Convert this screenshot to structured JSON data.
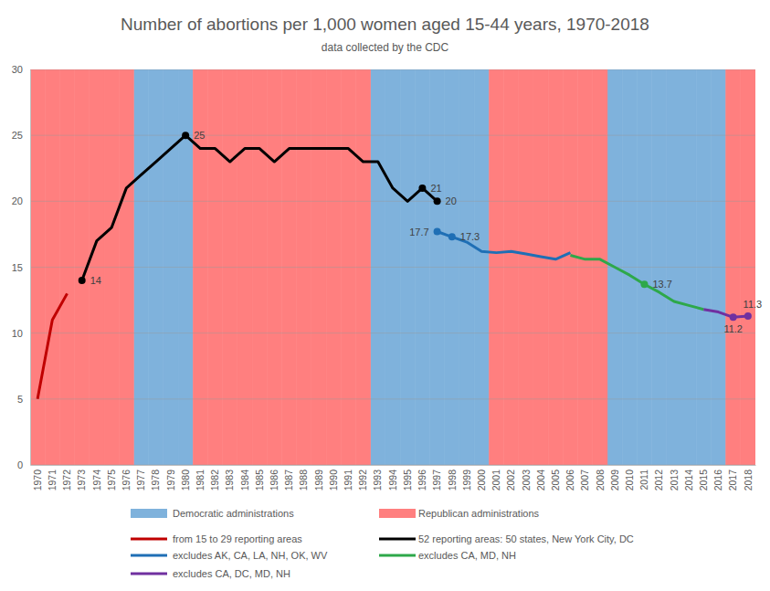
{
  "chart_data": {
    "type": "line",
    "title": "Number of abortions per 1,000 women aged 15-44 years, 1970-2018",
    "subtitle": "data collected by the CDC",
    "categories": [
      "1970",
      "1971",
      "1972",
      "1973",
      "1974",
      "1975",
      "1976",
      "1977",
      "1978",
      "1979",
      "1980",
      "1981",
      "1982",
      "1983",
      "1984",
      "1985",
      "1986",
      "1987",
      "1988",
      "1989",
      "1990",
      "1991",
      "1992",
      "1993",
      "1994",
      "1995",
      "1996",
      "1997",
      "1998",
      "1999",
      "2000",
      "2001",
      "2002",
      "2003",
      "2004",
      "2005",
      "2006",
      "2007",
      "2008",
      "2009",
      "2010",
      "2011",
      "2012",
      "2013",
      "2014",
      "2015",
      "2016",
      "2017",
      "2018"
    ],
    "series": [
      {
        "name": "Democratic administrations",
        "type": "bar",
        "color": "#7fb2dc",
        "values": [
          null,
          null,
          null,
          null,
          null,
          null,
          null,
          30,
          30,
          30,
          30,
          null,
          null,
          null,
          null,
          null,
          null,
          null,
          null,
          null,
          null,
          null,
          null,
          30,
          30,
          30,
          30,
          30,
          30,
          30,
          30,
          null,
          null,
          null,
          null,
          null,
          null,
          null,
          null,
          30,
          30,
          30,
          30,
          30,
          30,
          30,
          30,
          null,
          null
        ]
      },
      {
        "name": "Republican administrations",
        "type": "bar",
        "color": "#ff7f7f",
        "values": [
          30,
          30,
          30,
          30,
          30,
          30,
          30,
          null,
          null,
          null,
          null,
          30,
          30,
          30,
          30,
          30,
          30,
          30,
          30,
          30,
          30,
          30,
          30,
          null,
          null,
          null,
          null,
          null,
          null,
          null,
          null,
          30,
          30,
          30,
          30,
          30,
          30,
          30,
          30,
          null,
          null,
          null,
          null,
          null,
          null,
          null,
          null,
          30,
          30
        ]
      },
      {
        "name": "from 15 to 29 reporting areas",
        "type": "line",
        "color": "#c00000",
        "values": [
          5,
          11,
          13,
          null,
          null,
          null,
          null,
          null,
          null,
          null,
          null,
          null,
          null,
          null,
          null,
          null,
          null,
          null,
          null,
          null,
          null,
          null,
          null,
          null,
          null,
          null,
          null,
          null,
          null,
          null,
          null,
          null,
          null,
          null,
          null,
          null,
          null,
          null,
          null,
          null,
          null,
          null,
          null,
          null,
          null,
          null,
          null,
          null,
          null
        ]
      },
      {
        "name": "52 reporting areas: 50 states, New York City, DC",
        "type": "line",
        "color": "#000000",
        "data_labels": true,
        "values": [
          null,
          null,
          null,
          14,
          17,
          18,
          21,
          22,
          23,
          24,
          25,
          24,
          24,
          23,
          24,
          24,
          23,
          24,
          24,
          24,
          24,
          24,
          23,
          23,
          21,
          20,
          21,
          20,
          null,
          null,
          null,
          null,
          null,
          null,
          null,
          null,
          null,
          null,
          null,
          null,
          null,
          null,
          null,
          null,
          null,
          null,
          null,
          null,
          null
        ],
        "value_labels": [
          null,
          null,
          null,
          "14",
          null,
          null,
          null,
          null,
          null,
          null,
          "25",
          null,
          null,
          null,
          null,
          null,
          null,
          null,
          null,
          null,
          null,
          null,
          null,
          null,
          null,
          null,
          "21",
          "20",
          null,
          null,
          null,
          null,
          null,
          null,
          null,
          null,
          null,
          null,
          null,
          null,
          null,
          null,
          null,
          null,
          null,
          null,
          null,
          null,
          null
        ]
      },
      {
        "name": "excludes AK, CA, LA, NH, OK, WV",
        "type": "line",
        "color": "#1f6fb5",
        "data_labels": true,
        "values": [
          null,
          null,
          null,
          null,
          null,
          null,
          null,
          null,
          null,
          null,
          null,
          null,
          null,
          null,
          null,
          null,
          null,
          null,
          null,
          null,
          null,
          null,
          null,
          null,
          null,
          null,
          null,
          17.7,
          17.3,
          16.9,
          16.2,
          16.1,
          16.2,
          16.0,
          15.8,
          15.6,
          16.1,
          null,
          null,
          null,
          null,
          null,
          null,
          null,
          null,
          null,
          null,
          null,
          null
        ],
        "value_labels": [
          null,
          null,
          null,
          null,
          null,
          null,
          null,
          null,
          null,
          null,
          null,
          null,
          null,
          null,
          null,
          null,
          null,
          null,
          null,
          null,
          null,
          null,
          null,
          null,
          null,
          null,
          null,
          "17.7",
          "17.3",
          null,
          null,
          null,
          null,
          null,
          null,
          null,
          null,
          null,
          null,
          null,
          null,
          null,
          null,
          null,
          null,
          null,
          null,
          null,
          null
        ]
      },
      {
        "name": "excludes CA, MD, NH",
        "type": "line",
        "color": "#2ea84a",
        "data_labels": true,
        "values": [
          null,
          null,
          null,
          null,
          null,
          null,
          null,
          null,
          null,
          null,
          null,
          null,
          null,
          null,
          null,
          null,
          null,
          null,
          null,
          null,
          null,
          null,
          null,
          null,
          null,
          null,
          null,
          null,
          null,
          null,
          null,
          null,
          null,
          null,
          null,
          null,
          15.9,
          15.6,
          15.6,
          15.0,
          14.4,
          13.7,
          13.1,
          12.4,
          12.1,
          11.8,
          null,
          null,
          null
        ],
        "value_labels": [
          null,
          null,
          null,
          null,
          null,
          null,
          null,
          null,
          null,
          null,
          null,
          null,
          null,
          null,
          null,
          null,
          null,
          null,
          null,
          null,
          null,
          null,
          null,
          null,
          null,
          null,
          null,
          null,
          null,
          null,
          null,
          null,
          null,
          null,
          null,
          null,
          null,
          null,
          null,
          null,
          null,
          "13.7",
          null,
          null,
          null,
          null,
          null,
          null,
          null
        ]
      },
      {
        "name": "excludes CA, DC, MD, NH",
        "type": "line",
        "color": "#7030a0",
        "data_labels": true,
        "values": [
          null,
          null,
          null,
          null,
          null,
          null,
          null,
          null,
          null,
          null,
          null,
          null,
          null,
          null,
          null,
          null,
          null,
          null,
          null,
          null,
          null,
          null,
          null,
          null,
          null,
          null,
          null,
          null,
          null,
          null,
          null,
          null,
          null,
          null,
          null,
          null,
          null,
          null,
          null,
          null,
          null,
          null,
          null,
          null,
          null,
          11.8,
          11.6,
          11.2,
          11.3
        ],
        "value_labels": [
          null,
          null,
          null,
          null,
          null,
          null,
          null,
          null,
          null,
          null,
          null,
          null,
          null,
          null,
          null,
          null,
          null,
          null,
          null,
          null,
          null,
          null,
          null,
          null,
          null,
          null,
          null,
          null,
          null,
          null,
          null,
          null,
          null,
          null,
          null,
          null,
          null,
          null,
          null,
          null,
          null,
          null,
          null,
          null,
          null,
          null,
          null,
          "11.2",
          "11.3"
        ]
      }
    ],
    "ylim": [
      0,
      30
    ],
    "yticks": [
      0,
      5,
      10,
      15,
      20,
      25,
      30
    ],
    "grid": true,
    "legend": "bottom"
  }
}
